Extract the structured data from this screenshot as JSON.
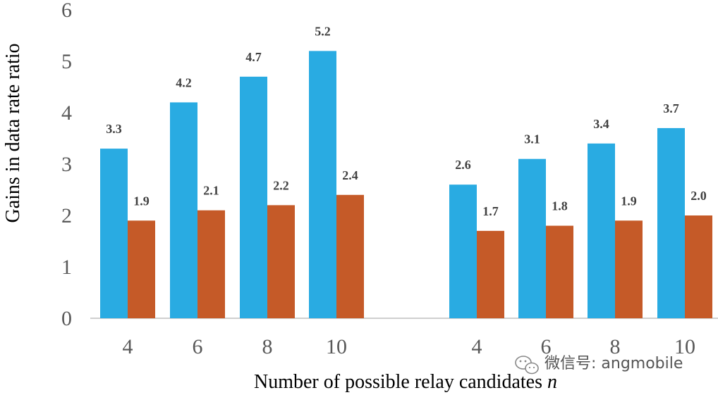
{
  "chart_data": {
    "type": "bar",
    "groups": [
      {
        "categories": [
          "4",
          "6",
          "8",
          "10"
        ],
        "series": [
          {
            "color": "#29abe2",
            "values": [
              3.3,
              4.2,
              4.7,
              5.2
            ]
          },
          {
            "color": "#c55a28",
            "values": [
              1.9,
              2.1,
              2.2,
              2.4
            ]
          }
        ]
      },
      {
        "categories": [
          "4",
          "6",
          "8",
          "10"
        ],
        "series": [
          {
            "color": "#29abe2",
            "values": [
              2.6,
              3.1,
              3.4,
              3.7
            ]
          },
          {
            "color": "#c55a28",
            "values": [
              1.7,
              1.8,
              1.9,
              2.0
            ]
          }
        ]
      }
    ],
    "ylabel": "Gains in data rate ratio",
    "xlabel_main": "Number of possible relay candidates ",
    "xlabel_var": "n",
    "ylim": [
      0,
      6
    ],
    "yticks": [
      0,
      1,
      2,
      3,
      4,
      5,
      6
    ],
    "grid": false,
    "legend": "none"
  },
  "watermark": {
    "icon": "wechat-icon",
    "text": "微信号: angmobile"
  }
}
